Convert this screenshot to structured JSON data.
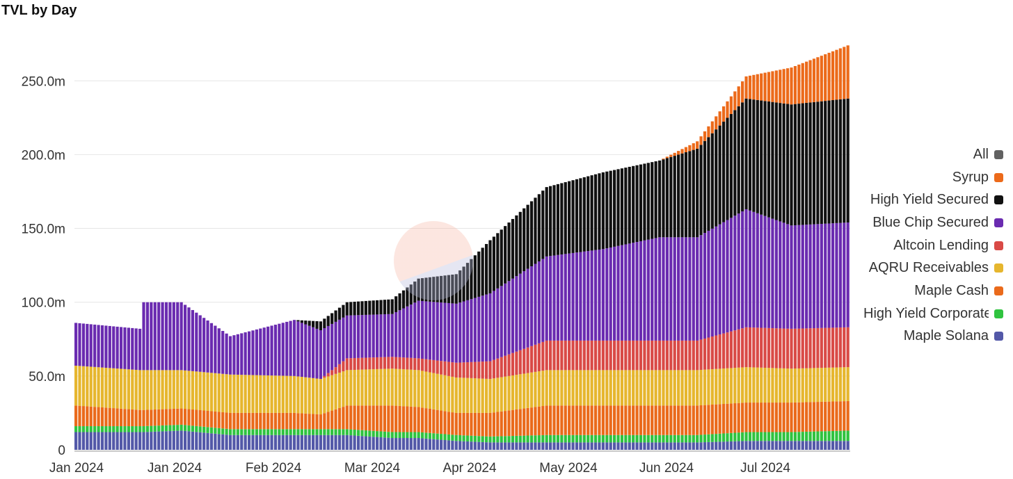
{
  "title": "TVL by Day",
  "legend": [
    {
      "name": "All",
      "color": "#616161"
    },
    {
      "name": "Syrup",
      "color": "#ec6a1a"
    },
    {
      "name": "High Yield Secured",
      "color": "#111111"
    },
    {
      "name": "Blue Chip Secured",
      "color": "#6a2bb0"
    },
    {
      "name": "Altcoin Lending",
      "color": "#d94a46"
    },
    {
      "name": "AQRU Receivables",
      "color": "#e6b62e"
    },
    {
      "name": "Maple Cash",
      "color": "#ea6a1b"
    },
    {
      "name": "High Yield Corporate",
      "color": "#2fc33f"
    },
    {
      "name": "Maple Solana",
      "color": "#5358a8"
    }
  ],
  "chart_data": {
    "type": "bar",
    "stacked": true,
    "title": "TVL by Day",
    "xlabel": "",
    "ylabel": "",
    "ylim": [
      0,
      280
    ],
    "y_unit": "m",
    "x_ticks": [
      "Jan 2024",
      "Jan 2024",
      "Feb 2024",
      "Mar 2024",
      "Apr 2024",
      "May 2024",
      "Jun 2024",
      "Jul 2024"
    ],
    "y_ticks": [
      "0",
      "50.0m",
      "100.0m",
      "150.0m",
      "200.0m",
      "250.0m"
    ],
    "grid": true,
    "legend_position": "right",
    "bar_count": 206,
    "keyframes": [
      {
        "day": 0,
        "Maple Solana": 12,
        "High Yield Corporate": 4,
        "Maple Cash": 14,
        "AQRU Receivables": 27,
        "Altcoin Lending": 0,
        "Blue Chip Secured": 29,
        "High Yield Secured": 0,
        "Syrup": 0
      },
      {
        "day": 17,
        "Maple Solana": 12,
        "High Yield Corporate": 4,
        "Maple Cash": 11,
        "AQRU Receivables": 27,
        "Altcoin Lending": 0,
        "Blue Chip Secured": 28,
        "High Yield Secured": 0,
        "Syrup": 0
      },
      {
        "day": 18,
        "Maple Solana": 12,
        "High Yield Corporate": 4,
        "Maple Cash": 11,
        "AQRU Receivables": 27,
        "Altcoin Lending": 0,
        "Blue Chip Secured": 46,
        "High Yield Secured": 0,
        "Syrup": 0
      },
      {
        "day": 28,
        "Maple Solana": 13,
        "High Yield Corporate": 4,
        "Maple Cash": 11,
        "AQRU Receivables": 26,
        "Altcoin Lending": 0,
        "Blue Chip Secured": 46,
        "High Yield Secured": 0,
        "Syrup": 0
      },
      {
        "day": 41,
        "Maple Solana": 10,
        "High Yield Corporate": 4,
        "Maple Cash": 11,
        "AQRU Receivables": 26,
        "Altcoin Lending": 0,
        "Blue Chip Secured": 26,
        "High Yield Secured": 0,
        "Syrup": 0
      },
      {
        "day": 58,
        "Maple Solana": 10,
        "High Yield Corporate": 4,
        "Maple Cash": 11,
        "AQRU Receivables": 25,
        "Altcoin Lending": 0,
        "Blue Chip Secured": 38,
        "High Yield Secured": 0,
        "Syrup": 0
      },
      {
        "day": 65,
        "Maple Solana": 10,
        "High Yield Corporate": 4,
        "Maple Cash": 10,
        "AQRU Receivables": 24,
        "Altcoin Lending": 0,
        "Blue Chip Secured": 33,
        "High Yield Secured": 6,
        "Syrup": 0
      },
      {
        "day": 72,
        "Maple Solana": 10,
        "High Yield Corporate": 4,
        "Maple Cash": 16,
        "AQRU Receivables": 24,
        "Altcoin Lending": 8,
        "Blue Chip Secured": 29,
        "High Yield Secured": 9,
        "Syrup": 0
      },
      {
        "day": 84,
        "Maple Solana": 8,
        "High Yield Corporate": 4,
        "Maple Cash": 18,
        "AQRU Receivables": 25,
        "Altcoin Lending": 8,
        "Blue Chip Secured": 29,
        "High Yield Secured": 10,
        "Syrup": 0
      },
      {
        "day": 91,
        "Maple Solana": 8,
        "High Yield Corporate": 4,
        "Maple Cash": 17,
        "AQRU Receivables": 25,
        "Altcoin Lending": 8,
        "Blue Chip Secured": 39,
        "High Yield Secured": 15,
        "Syrup": 0
      },
      {
        "day": 101,
        "Maple Solana": 6,
        "High Yield Corporate": 4,
        "Maple Cash": 15,
        "AQRU Receivables": 24,
        "Altcoin Lending": 10,
        "Blue Chip Secured": 40,
        "High Yield Secured": 20,
        "Syrup": 0
      },
      {
        "day": 110,
        "Maple Solana": 5,
        "High Yield Corporate": 4,
        "Maple Cash": 16,
        "AQRU Receivables": 23,
        "Altcoin Lending": 12,
        "Blue Chip Secured": 46,
        "High Yield Secured": 36,
        "Syrup": 0
      },
      {
        "day": 125,
        "Maple Solana": 5,
        "High Yield Corporate": 5,
        "Maple Cash": 20,
        "AQRU Receivables": 24,
        "Altcoin Lending": 20,
        "Blue Chip Secured": 57,
        "High Yield Secured": 47,
        "Syrup": 0
      },
      {
        "day": 140,
        "Maple Solana": 5,
        "High Yield Corporate": 5,
        "Maple Cash": 20,
        "AQRU Receivables": 24,
        "Altcoin Lending": 20,
        "Blue Chip Secured": 62,
        "High Yield Secured": 52,
        "Syrup": 0
      },
      {
        "day": 155,
        "Maple Solana": 5,
        "High Yield Corporate": 5,
        "Maple Cash": 20,
        "AQRU Receivables": 24,
        "Altcoin Lending": 20,
        "Blue Chip Secured": 70,
        "High Yield Secured": 52,
        "Syrup": 0
      },
      {
        "day": 165,
        "Maple Solana": 5,
        "High Yield Corporate": 5,
        "Maple Cash": 20,
        "AQRU Receivables": 24,
        "Altcoin Lending": 20,
        "Blue Chip Secured": 70,
        "High Yield Secured": 60,
        "Syrup": 5
      },
      {
        "day": 178,
        "Maple Solana": 6,
        "High Yield Corporate": 6,
        "Maple Cash": 20,
        "AQRU Receivables": 24,
        "Altcoin Lending": 27,
        "Blue Chip Secured": 80,
        "High Yield Secured": 75,
        "Syrup": 15
      },
      {
        "day": 190,
        "Maple Solana": 6,
        "High Yield Corporate": 6,
        "Maple Cash": 20,
        "AQRU Receivables": 23,
        "Altcoin Lending": 27,
        "Blue Chip Secured": 70,
        "High Yield Secured": 82,
        "Syrup": 25
      },
      {
        "day": 205,
        "Maple Solana": 6,
        "High Yield Corporate": 7,
        "Maple Cash": 20,
        "AQRU Receivables": 23,
        "Altcoin Lending": 27,
        "Blue Chip Secured": 71,
        "High Yield Secured": 84,
        "Syrup": 36
      }
    ]
  }
}
